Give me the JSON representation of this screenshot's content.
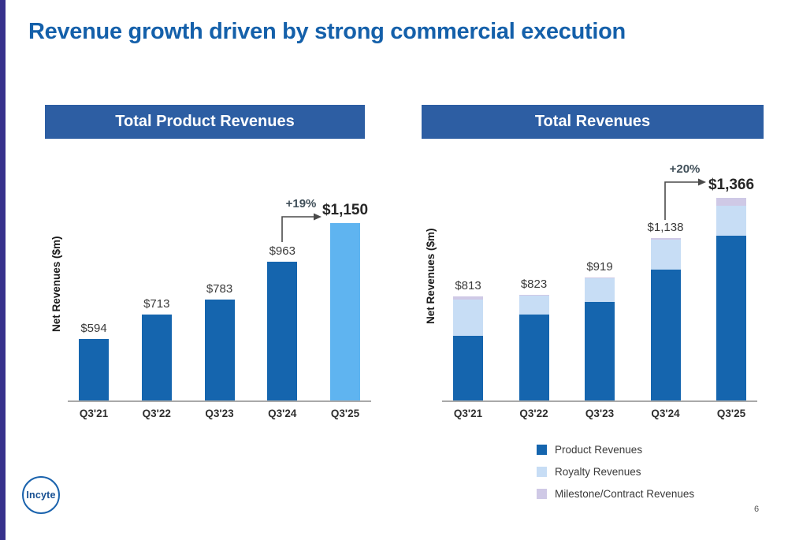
{
  "slide": {
    "title": "Revenue growth driven by strong commercial execution",
    "page_number": "6",
    "logo_text": "Incyte"
  },
  "colors": {
    "title_blue": "#1460aa",
    "header_bar_blue": "#2d5ea3",
    "product_dark_blue": "#1565ae",
    "highlight_light_blue": "#5fb4f0",
    "royalty_light_blue": "#c7ddf5",
    "milestone_lavender": "#cfc9e6",
    "accent_stripe_purple": "#37318c"
  },
  "chart_data": [
    {
      "type": "bar",
      "title": "Total Product Revenues",
      "ylabel": "Net Revenues ($m)",
      "categories": [
        "Q3'21",
        "Q3'22",
        "Q3'23",
        "Q3'24",
        "Q3'25"
      ],
      "values": [
        594,
        713,
        783,
        963,
        1150
      ],
      "value_labels": [
        "$594",
        "$713",
        "$783",
        "$963",
        "$1,150"
      ],
      "growth_annotation": "+19%",
      "highlight_index": 4,
      "ylim": [
        300,
        1300
      ],
      "grid": false
    },
    {
      "type": "stacked-bar",
      "title": "Total Revenues",
      "ylabel": "Net Revenues ($m)",
      "categories": [
        "Q3'21",
        "Q3'22",
        "Q3'23",
        "Q3'24",
        "Q3'25"
      ],
      "totals": [
        813,
        823,
        919,
        1138,
        1366
      ],
      "total_labels": [
        "$813",
        "$823",
        "$919",
        "$1,138",
        "$1,366"
      ],
      "series": [
        {
          "name": "Product Revenues",
          "color": "#1565ae",
          "values": [
            594,
            713,
            783,
            963,
            1150
          ]
        },
        {
          "name": "Royalty Revenues",
          "color": "#c7ddf5",
          "values": [
            199,
            105,
            130,
            165,
            170
          ]
        },
        {
          "name": "Milestone/Contract Revenues",
          "color": "#cfc9e6",
          "values": [
            20,
            5,
            6,
            10,
            46
          ]
        }
      ],
      "growth_annotation": "+20%",
      "ylim": [
        230,
        1430
      ],
      "grid": false,
      "legend_position": "bottom-right"
    }
  ],
  "legend": {
    "items": [
      {
        "label": "Product Revenues",
        "color": "#1565ae"
      },
      {
        "label": "Royalty Revenues",
        "color": "#c7ddf5"
      },
      {
        "label": "Milestone/Contract Revenues",
        "color": "#cfc9e6"
      }
    ]
  }
}
